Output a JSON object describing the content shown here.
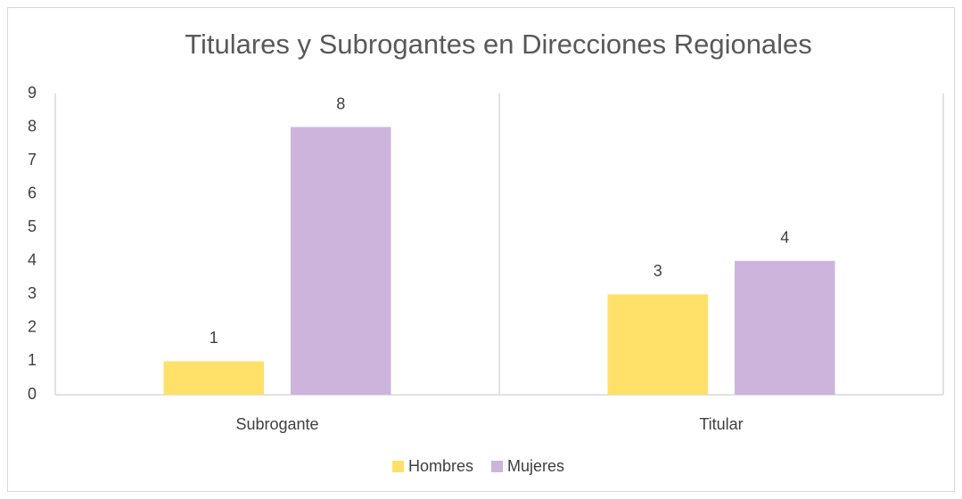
{
  "chart_data": {
    "type": "bar",
    "title": "Titulares y Subrogantes en Direcciones Regionales",
    "categories": [
      "Subrogante",
      "Titular"
    ],
    "series": [
      {
        "name": "Hombres",
        "color": "#ffe069",
        "values": [
          1,
          3
        ]
      },
      {
        "name": "Mujeres",
        "color": "#cdb4dd",
        "values": [
          8,
          4
        ]
      }
    ],
    "ylim": [
      0,
      9
    ],
    "yticks": [
      0,
      1,
      2,
      3,
      4,
      5,
      6,
      7,
      8,
      9
    ],
    "grid": false,
    "legend": "bottom"
  }
}
